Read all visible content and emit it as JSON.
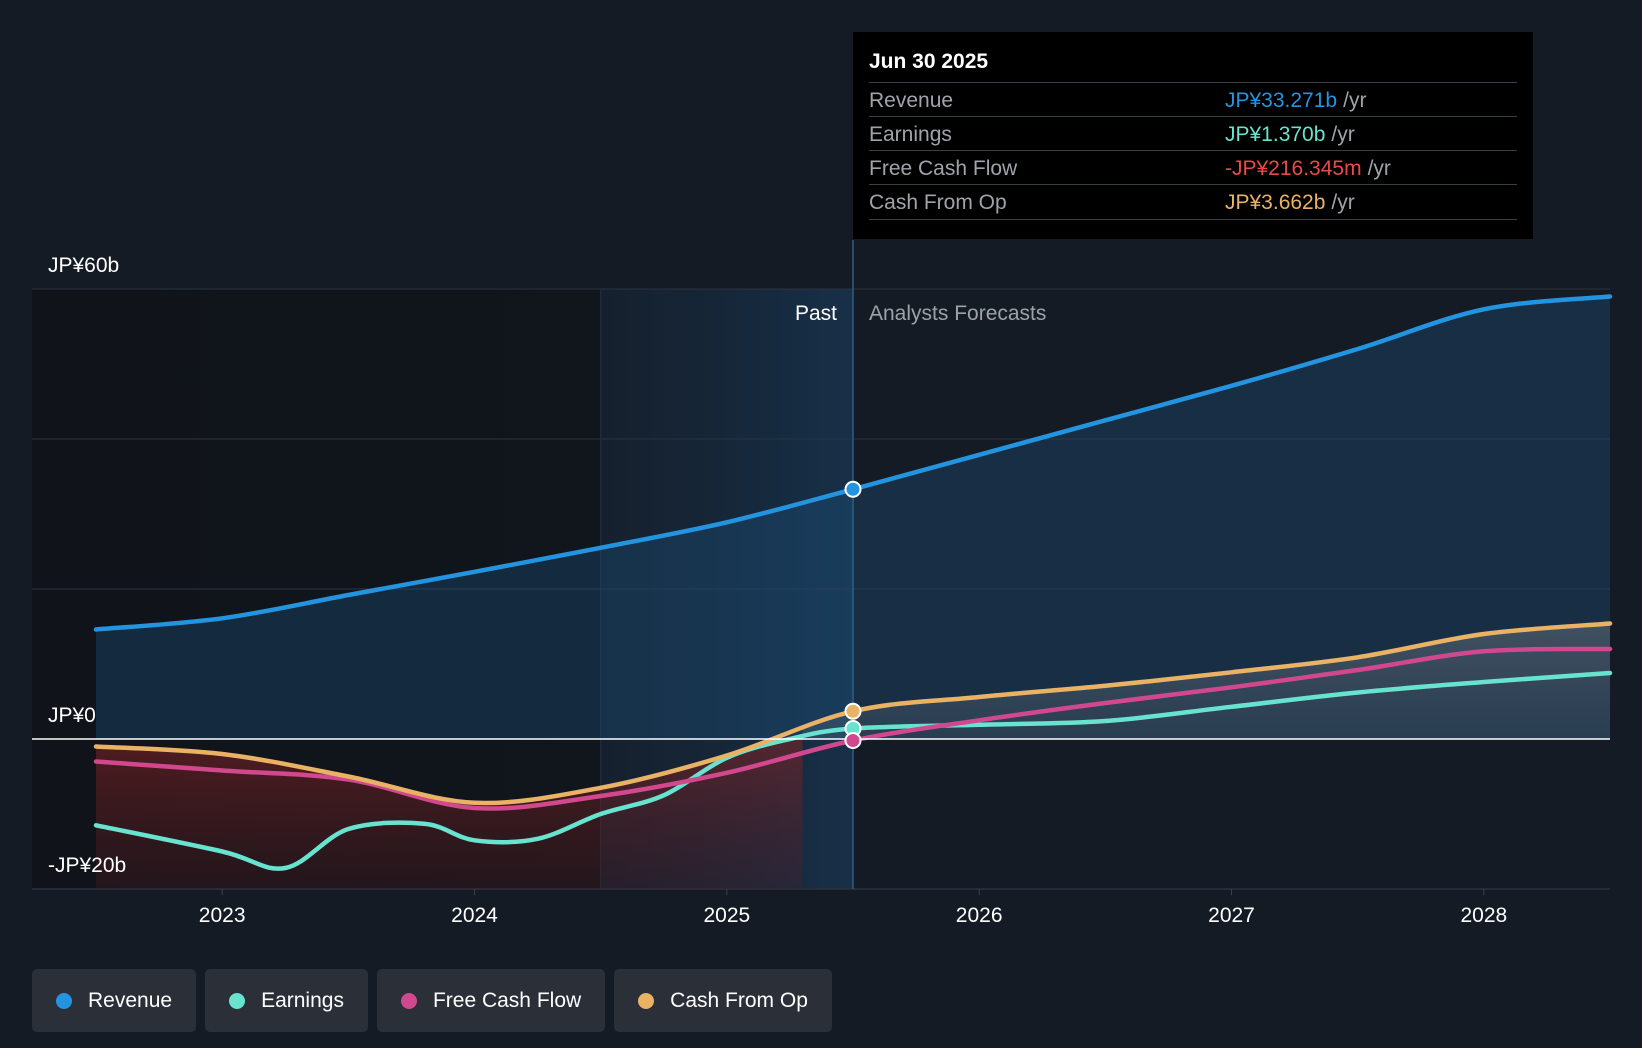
{
  "chart_data": {
    "type": "line",
    "y_axis": {
      "labels": [
        "JP¥60b",
        "JP¥0",
        "-JP¥20b"
      ],
      "ylim": [
        -20,
        60
      ],
      "gridlines": [
        60,
        40,
        20,
        0,
        -20
      ],
      "unit": "JP¥ billions"
    },
    "x_axis": {
      "ticks": [
        "2023",
        "2024",
        "2025",
        "2026",
        "2027",
        "2028"
      ],
      "tick_values": [
        2023,
        2024,
        2025,
        2026,
        2027,
        2028
      ],
      "xlim": [
        2022.5,
        2028.5
      ]
    },
    "regions": {
      "past_label": "Past",
      "forecast_label": "Analysts Forecasts",
      "divider_x": 2025.5,
      "highlight_start_x": 2024.5
    },
    "series": [
      {
        "name": "Revenue",
        "color": "#2394df",
        "points": [
          [
            2022.5,
            14.6
          ],
          [
            2023.0,
            16.1
          ],
          [
            2023.5,
            19.2
          ],
          [
            2024.0,
            22.3
          ],
          [
            2024.5,
            25.5
          ],
          [
            2025.0,
            28.9
          ],
          [
            2025.5,
            33.3
          ],
          [
            2026.0,
            37.9
          ],
          [
            2026.5,
            42.5
          ],
          [
            2027.0,
            47.1
          ],
          [
            2027.5,
            52.0
          ],
          [
            2028.0,
            57.3
          ],
          [
            2028.5,
            59.0
          ]
        ]
      },
      {
        "name": "Earnings",
        "color": "#67e3cf",
        "points": [
          [
            2022.5,
            -11.5
          ],
          [
            2023.0,
            -15.0
          ],
          [
            2023.25,
            -17.2
          ],
          [
            2023.5,
            -12.0
          ],
          [
            2023.8,
            -11.3
          ],
          [
            2024.0,
            -13.5
          ],
          [
            2024.25,
            -13.3
          ],
          [
            2024.5,
            -10.0
          ],
          [
            2024.75,
            -7.5
          ],
          [
            2025.0,
            -2.5
          ],
          [
            2025.25,
            0.0
          ],
          [
            2025.5,
            1.4
          ],
          [
            2026.0,
            1.9
          ],
          [
            2026.5,
            2.4
          ],
          [
            2027.0,
            4.3
          ],
          [
            2027.5,
            6.2
          ],
          [
            2028.0,
            7.6
          ],
          [
            2028.5,
            8.8
          ]
        ]
      },
      {
        "name": "Free Cash Flow",
        "color": "#d1488e",
        "points": [
          [
            2022.5,
            -3.0
          ],
          [
            2023.0,
            -4.2
          ],
          [
            2023.5,
            -5.4
          ],
          [
            2024.0,
            -9.2
          ],
          [
            2024.5,
            -7.6
          ],
          [
            2025.0,
            -4.5
          ],
          [
            2025.5,
            -0.2
          ],
          [
            2026.0,
            2.5
          ],
          [
            2026.5,
            4.8
          ],
          [
            2027.0,
            6.9
          ],
          [
            2027.5,
            9.2
          ],
          [
            2028.0,
            11.7
          ],
          [
            2028.5,
            12.0
          ]
        ]
      },
      {
        "name": "Cash From Op",
        "color": "#e9b264",
        "points": [
          [
            2022.5,
            -1.0
          ],
          [
            2023.0,
            -2.0
          ],
          [
            2023.5,
            -5.0
          ],
          [
            2024.0,
            -8.5
          ],
          [
            2024.5,
            -6.5
          ],
          [
            2025.0,
            -2.2
          ],
          [
            2025.5,
            3.7
          ],
          [
            2026.0,
            5.6
          ],
          [
            2026.5,
            7.1
          ],
          [
            2027.0,
            8.9
          ],
          [
            2027.5,
            10.9
          ],
          [
            2028.0,
            14.0
          ],
          [
            2028.5,
            15.4
          ]
        ]
      }
    ]
  },
  "tooltip": {
    "date": "Jun 30 2025",
    "unit": "/yr",
    "rows": [
      {
        "label": "Revenue",
        "value": "JP¥33.271b",
        "color": "#2394df"
      },
      {
        "label": "Earnings",
        "value": "JP¥1.370b",
        "color": "#67e3cf"
      },
      {
        "label": "Free Cash Flow",
        "value": "-JP¥216.345m",
        "color": "#e84a4a"
      },
      {
        "label": "Cash From Op",
        "value": "JP¥3.662b",
        "color": "#e9b264"
      }
    ]
  },
  "legend": [
    {
      "label": "Revenue",
      "color": "#2394df"
    },
    {
      "label": "Earnings",
      "color": "#67e3cf"
    },
    {
      "label": "Free Cash Flow",
      "color": "#d1488e"
    },
    {
      "label": "Cash From Op",
      "color": "#e9b264"
    }
  ]
}
